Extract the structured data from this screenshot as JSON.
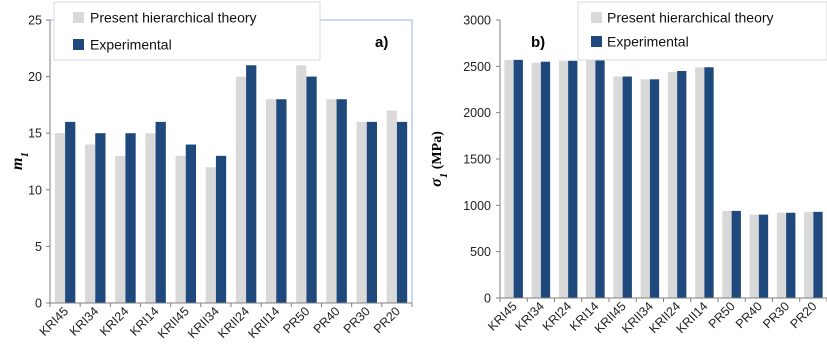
{
  "chart_data": [
    {
      "type": "bar",
      "panel_label": "a)",
      "ylabel": "m",
      "ylabel_sub": "1",
      "ylim": [
        0,
        25
      ],
      "yticks": [
        0,
        5,
        10,
        15,
        20,
        25
      ],
      "categories": [
        "KRI45",
        "KRI34",
        "KRI24",
        "KRI14",
        "KRII45",
        "KRII34",
        "KRII24",
        "KRII14",
        "PR50",
        "PR40",
        "PR30",
        "PR20"
      ],
      "series": [
        {
          "name": "Present hierarchical theory",
          "color": "#d9d9d9",
          "values": [
            15,
            14,
            13,
            15,
            13,
            12,
            20,
            18,
            21,
            18,
            16,
            17
          ]
        },
        {
          "name": "Experimental",
          "color": "#1f497d",
          "values": [
            16,
            15,
            15,
            16,
            14,
            13,
            21,
            18,
            20,
            18,
            16,
            16
          ]
        }
      ],
      "legend_position": "top-center",
      "grid": false
    },
    {
      "type": "bar",
      "panel_label": "b)",
      "ylabel": "σ",
      "ylabel_sub": "1",
      "ylabel_unit": "(MPa)",
      "ylim": [
        0,
        3000
      ],
      "yticks": [
        0,
        500,
        1000,
        1500,
        2000,
        2500,
        3000
      ],
      "categories": [
        "KRI45",
        "KRI34",
        "KRI24",
        "KRI14",
        "KRII45",
        "KRII34",
        "KRII24",
        "KRII14",
        "PR50",
        "PR40",
        "PR30",
        "PR20"
      ],
      "series": [
        {
          "name": "Present hierarchical theory",
          "color": "#d9d9d9",
          "values": [
            2570,
            2540,
            2560,
            2610,
            2390,
            2360,
            2440,
            2490,
            940,
            900,
            920,
            930
          ]
        },
        {
          "name": "Experimental",
          "color": "#1f497d",
          "values": [
            2570,
            2550,
            2560,
            2610,
            2390,
            2360,
            2450,
            2490,
            940,
            900,
            920,
            930
          ]
        }
      ],
      "legend_position": "top-center",
      "grid": false
    }
  ]
}
